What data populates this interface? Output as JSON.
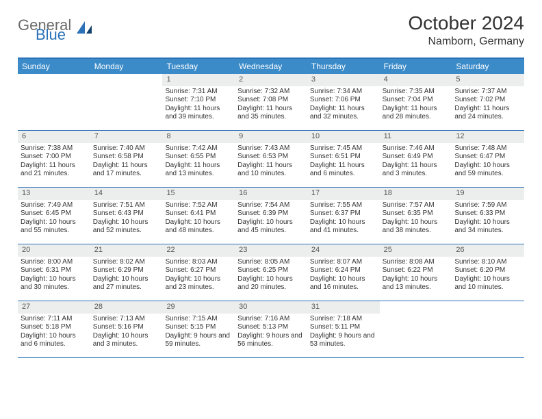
{
  "brand": {
    "part1": "General",
    "part2": "Blue",
    "color_gray": "#6b6b6b",
    "color_blue": "#2a71b8"
  },
  "title": "October 2024",
  "location": "Namborn, Germany",
  "colors": {
    "header_bar": "#3b8bc9",
    "border": "#2a71b8",
    "daynum_bg": "#eceded",
    "text": "#333333",
    "bg": "#ffffff"
  },
  "dow": [
    "Sunday",
    "Monday",
    "Tuesday",
    "Wednesday",
    "Thursday",
    "Friday",
    "Saturday"
  ],
  "weeks": [
    [
      {
        "n": "",
        "lines": []
      },
      {
        "n": "",
        "lines": []
      },
      {
        "n": "1",
        "lines": [
          "Sunrise: 7:31 AM",
          "Sunset: 7:10 PM",
          "Daylight: 11 hours and 39 minutes."
        ]
      },
      {
        "n": "2",
        "lines": [
          "Sunrise: 7:32 AM",
          "Sunset: 7:08 PM",
          "Daylight: 11 hours and 35 minutes."
        ]
      },
      {
        "n": "3",
        "lines": [
          "Sunrise: 7:34 AM",
          "Sunset: 7:06 PM",
          "Daylight: 11 hours and 32 minutes."
        ]
      },
      {
        "n": "4",
        "lines": [
          "Sunrise: 7:35 AM",
          "Sunset: 7:04 PM",
          "Daylight: 11 hours and 28 minutes."
        ]
      },
      {
        "n": "5",
        "lines": [
          "Sunrise: 7:37 AM",
          "Sunset: 7:02 PM",
          "Daylight: 11 hours and 24 minutes."
        ]
      }
    ],
    [
      {
        "n": "6",
        "lines": [
          "Sunrise: 7:38 AM",
          "Sunset: 7:00 PM",
          "Daylight: 11 hours and 21 minutes."
        ]
      },
      {
        "n": "7",
        "lines": [
          "Sunrise: 7:40 AM",
          "Sunset: 6:58 PM",
          "Daylight: 11 hours and 17 minutes."
        ]
      },
      {
        "n": "8",
        "lines": [
          "Sunrise: 7:42 AM",
          "Sunset: 6:55 PM",
          "Daylight: 11 hours and 13 minutes."
        ]
      },
      {
        "n": "9",
        "lines": [
          "Sunrise: 7:43 AM",
          "Sunset: 6:53 PM",
          "Daylight: 11 hours and 10 minutes."
        ]
      },
      {
        "n": "10",
        "lines": [
          "Sunrise: 7:45 AM",
          "Sunset: 6:51 PM",
          "Daylight: 11 hours and 6 minutes."
        ]
      },
      {
        "n": "11",
        "lines": [
          "Sunrise: 7:46 AM",
          "Sunset: 6:49 PM",
          "Daylight: 11 hours and 3 minutes."
        ]
      },
      {
        "n": "12",
        "lines": [
          "Sunrise: 7:48 AM",
          "Sunset: 6:47 PM",
          "Daylight: 10 hours and 59 minutes."
        ]
      }
    ],
    [
      {
        "n": "13",
        "lines": [
          "Sunrise: 7:49 AM",
          "Sunset: 6:45 PM",
          "Daylight: 10 hours and 55 minutes."
        ]
      },
      {
        "n": "14",
        "lines": [
          "Sunrise: 7:51 AM",
          "Sunset: 6:43 PM",
          "Daylight: 10 hours and 52 minutes."
        ]
      },
      {
        "n": "15",
        "lines": [
          "Sunrise: 7:52 AM",
          "Sunset: 6:41 PM",
          "Daylight: 10 hours and 48 minutes."
        ]
      },
      {
        "n": "16",
        "lines": [
          "Sunrise: 7:54 AM",
          "Sunset: 6:39 PM",
          "Daylight: 10 hours and 45 minutes."
        ]
      },
      {
        "n": "17",
        "lines": [
          "Sunrise: 7:55 AM",
          "Sunset: 6:37 PM",
          "Daylight: 10 hours and 41 minutes."
        ]
      },
      {
        "n": "18",
        "lines": [
          "Sunrise: 7:57 AM",
          "Sunset: 6:35 PM",
          "Daylight: 10 hours and 38 minutes."
        ]
      },
      {
        "n": "19",
        "lines": [
          "Sunrise: 7:59 AM",
          "Sunset: 6:33 PM",
          "Daylight: 10 hours and 34 minutes."
        ]
      }
    ],
    [
      {
        "n": "20",
        "lines": [
          "Sunrise: 8:00 AM",
          "Sunset: 6:31 PM",
          "Daylight: 10 hours and 30 minutes."
        ]
      },
      {
        "n": "21",
        "lines": [
          "Sunrise: 8:02 AM",
          "Sunset: 6:29 PM",
          "Daylight: 10 hours and 27 minutes."
        ]
      },
      {
        "n": "22",
        "lines": [
          "Sunrise: 8:03 AM",
          "Sunset: 6:27 PM",
          "Daylight: 10 hours and 23 minutes."
        ]
      },
      {
        "n": "23",
        "lines": [
          "Sunrise: 8:05 AM",
          "Sunset: 6:25 PM",
          "Daylight: 10 hours and 20 minutes."
        ]
      },
      {
        "n": "24",
        "lines": [
          "Sunrise: 8:07 AM",
          "Sunset: 6:24 PM",
          "Daylight: 10 hours and 16 minutes."
        ]
      },
      {
        "n": "25",
        "lines": [
          "Sunrise: 8:08 AM",
          "Sunset: 6:22 PM",
          "Daylight: 10 hours and 13 minutes."
        ]
      },
      {
        "n": "26",
        "lines": [
          "Sunrise: 8:10 AM",
          "Sunset: 6:20 PM",
          "Daylight: 10 hours and 10 minutes."
        ]
      }
    ],
    [
      {
        "n": "27",
        "lines": [
          "Sunrise: 7:11 AM",
          "Sunset: 5:18 PM",
          "Daylight: 10 hours and 6 minutes."
        ]
      },
      {
        "n": "28",
        "lines": [
          "Sunrise: 7:13 AM",
          "Sunset: 5:16 PM",
          "Daylight: 10 hours and 3 minutes."
        ]
      },
      {
        "n": "29",
        "lines": [
          "Sunrise: 7:15 AM",
          "Sunset: 5:15 PM",
          "Daylight: 9 hours and 59 minutes."
        ]
      },
      {
        "n": "30",
        "lines": [
          "Sunrise: 7:16 AM",
          "Sunset: 5:13 PM",
          "Daylight: 9 hours and 56 minutes."
        ]
      },
      {
        "n": "31",
        "lines": [
          "Sunrise: 7:18 AM",
          "Sunset: 5:11 PM",
          "Daylight: 9 hours and 53 minutes."
        ]
      },
      {
        "n": "",
        "lines": []
      },
      {
        "n": "",
        "lines": []
      }
    ]
  ]
}
